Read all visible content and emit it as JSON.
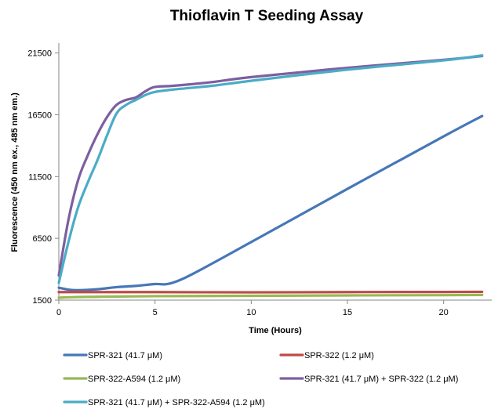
{
  "chart_data": {
    "type": "line",
    "title": "Thioflavin T Seeding Assay",
    "xlabel": "Time (Hours)",
    "ylabel": "Fluorescence (450 nm ex., 485 nm em.)",
    "xlim": [
      0,
      22.5
    ],
    "ylim": [
      1500,
      22300
    ],
    "xticks": [
      0,
      5,
      10,
      15,
      20
    ],
    "yticks": [
      1500,
      6500,
      11500,
      16500,
      21500
    ],
    "grid": false,
    "legend_position": "bottom",
    "series": [
      {
        "name": "SPR-321 (41.7 μM)",
        "color": "#4677b8",
        "points": [
          [
            0,
            2500
          ],
          [
            0.5,
            2350
          ],
          [
            1,
            2300
          ],
          [
            2,
            2380
          ],
          [
            3,
            2550
          ],
          [
            4,
            2650
          ],
          [
            5,
            2800
          ],
          [
            5.5,
            2780
          ],
          [
            6,
            2950
          ],
          [
            7,
            3650
          ],
          [
            10,
            6200
          ],
          [
            15,
            10500
          ],
          [
            20,
            14750
          ],
          [
            22,
            16400
          ]
        ]
      },
      {
        "name": "SPR-322 (1.2 μM)",
        "color": "#be4b48",
        "points": [
          [
            0,
            2150
          ],
          [
            5,
            2150
          ],
          [
            10,
            2130
          ],
          [
            15,
            2150
          ],
          [
            20,
            2160
          ],
          [
            22,
            2170
          ]
        ]
      },
      {
        "name": "SPR-322-A594 (1.2 μM)",
        "color": "#98b954",
        "points": [
          [
            0,
            1700
          ],
          [
            1,
            1750
          ],
          [
            2,
            1770
          ],
          [
            5,
            1820
          ],
          [
            10,
            1850
          ],
          [
            15,
            1880
          ],
          [
            20,
            1900
          ],
          [
            22,
            1920
          ]
        ]
      },
      {
        "name": "SPR-321 (41.7 μM) + SPR-322 (1.2 μM)",
        "color": "#7d5fa0",
        "points": [
          [
            0,
            3500
          ],
          [
            0.5,
            8000
          ],
          [
            1,
            11200
          ],
          [
            1.5,
            13200
          ],
          [
            2,
            14900
          ],
          [
            2.5,
            16300
          ],
          [
            3,
            17300
          ],
          [
            3.5,
            17700
          ],
          [
            4,
            17900
          ],
          [
            4.5,
            18400
          ],
          [
            5,
            18750
          ],
          [
            6,
            18850
          ],
          [
            8,
            19150
          ],
          [
            10,
            19550
          ],
          [
            15,
            20300
          ],
          [
            20,
            20950
          ],
          [
            22,
            21250
          ]
        ]
      },
      {
        "name": "SPR-321 (41.7 μM) + SPR-322-A594 (1.2 μM)",
        "color": "#4bacc6",
        "points": [
          [
            0,
            2900
          ],
          [
            0.5,
            6200
          ],
          [
            1,
            9000
          ],
          [
            1.5,
            11000
          ],
          [
            2,
            12800
          ],
          [
            2.5,
            14800
          ],
          [
            3,
            16600
          ],
          [
            3.5,
            17300
          ],
          [
            4,
            17700
          ],
          [
            4.5,
            18100
          ],
          [
            5,
            18350
          ],
          [
            6,
            18550
          ],
          [
            8,
            18850
          ],
          [
            10,
            19250
          ],
          [
            15,
            20150
          ],
          [
            20,
            20900
          ],
          [
            22,
            21300
          ]
        ]
      }
    ]
  }
}
